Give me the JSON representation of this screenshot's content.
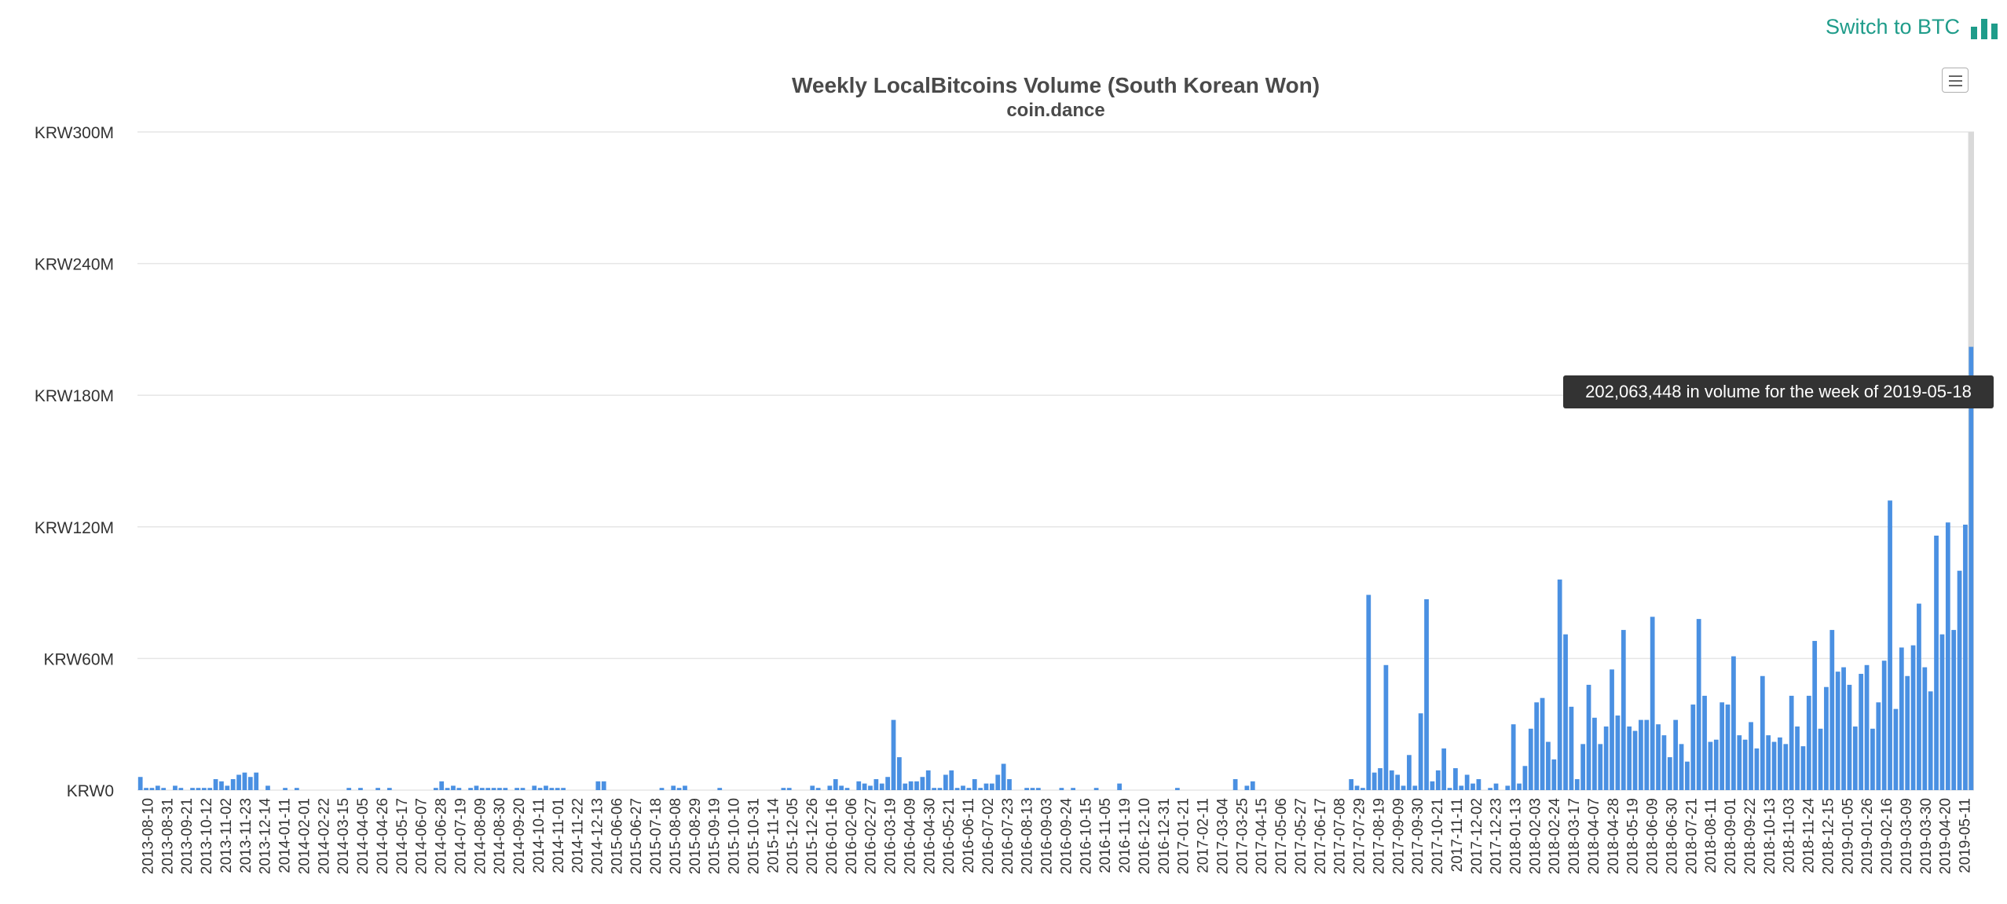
{
  "switch_button": {
    "label": "Switch to BTC",
    "icon": "bar-chart-icon",
    "color": "#1f9c8a"
  },
  "menu_button": {
    "icon": "hamburger-menu-icon"
  },
  "tooltip": {
    "text": "202,063,448 in volume for the week of 2019-05-18"
  },
  "colors": {
    "bar": "#4a90e2",
    "grid": "#e6e6e6",
    "title": "#4a4a4a",
    "axis_text": "#333333",
    "highlight": "#d9d9d9"
  },
  "chart_data": {
    "type": "bar",
    "title": "Weekly LocalBitcoins Volume (South Korean Won)",
    "subtitle": "coin.dance",
    "ylim": [
      0,
      300000000
    ],
    "y_ticks": [
      0,
      60000000,
      120000000,
      180000000,
      240000000,
      300000000
    ],
    "y_tick_labels": [
      "KRW0",
      "KRW60M",
      "KRW120M",
      "KRW180M",
      "KRW240M",
      "KRW300M"
    ],
    "grid": true,
    "legend": "none",
    "x_tick_labels": [
      "2013-08-10",
      "2013-08-31",
      "2013-09-21",
      "2013-10-12",
      "2013-11-02",
      "2013-11-23",
      "2013-12-14",
      "2014-01-11",
      "2014-02-01",
      "2014-02-22",
      "2014-03-15",
      "2014-04-05",
      "2014-04-26",
      "2014-05-17",
      "2014-06-07",
      "2014-06-28",
      "2014-07-19",
      "2014-08-09",
      "2014-08-30",
      "2014-09-20",
      "2014-10-11",
      "2014-11-01",
      "2014-11-22",
      "2014-12-13",
      "2015-06-06",
      "2015-06-27",
      "2015-07-18",
      "2015-08-08",
      "2015-08-29",
      "2015-09-19",
      "2015-10-10",
      "2015-10-31",
      "2015-11-14",
      "2015-12-05",
      "2015-12-26",
      "2016-01-16",
      "2016-02-06",
      "2016-02-27",
      "2016-03-19",
      "2016-04-09",
      "2016-04-30",
      "2016-05-21",
      "2016-06-11",
      "2016-07-02",
      "2016-07-23",
      "2016-08-13",
      "2016-09-03",
      "2016-09-24",
      "2016-10-15",
      "2016-11-05",
      "2016-11-19",
      "2016-12-10",
      "2016-12-31",
      "2017-01-21",
      "2017-02-11",
      "2017-03-04",
      "2017-03-25",
      "2017-04-15",
      "2017-05-06",
      "2017-05-27",
      "2017-06-17",
      "2017-07-08",
      "2017-07-29",
      "2017-08-19",
      "2017-09-09",
      "2017-09-30",
      "2017-10-21",
      "2017-11-11",
      "2017-12-02",
      "2017-12-23",
      "2018-01-13",
      "2018-02-03",
      "2018-02-24",
      "2018-03-17",
      "2018-04-07",
      "2018-04-28",
      "2018-05-19",
      "2018-06-09",
      "2018-06-30",
      "2018-07-21",
      "2018-08-11",
      "2018-09-01",
      "2018-09-22",
      "2018-10-13",
      "2018-11-03",
      "2018-11-24",
      "2018-12-15",
      "2019-01-05",
      "2019-01-26",
      "2019-02-16",
      "2019-03-09",
      "2019-03-30",
      "2019-04-20",
      "2019-05-11"
    ],
    "values": [
      6,
      1,
      1,
      2,
      1,
      0,
      2,
      1,
      0,
      1,
      1,
      1,
      1,
      5,
      4,
      2,
      5,
      7,
      8,
      6,
      8,
      0,
      2,
      0,
      0,
      1,
      0,
      1,
      0,
      0,
      0,
      0,
      0,
      0,
      0,
      0,
      1,
      0,
      1,
      0,
      0,
      1,
      0,
      1,
      0,
      0,
      0,
      0,
      0,
      0,
      0,
      1,
      4,
      1,
      2,
      1,
      0,
      1,
      2,
      1,
      1,
      1,
      1,
      1,
      0,
      1,
      1,
      0,
      2,
      1,
      2,
      1,
      1,
      1,
      0,
      0,
      0,
      0,
      0,
      4,
      4,
      0,
      0,
      0,
      0,
      0,
      0,
      0,
      0,
      0,
      1,
      0,
      2,
      1,
      2,
      0,
      0,
      0,
      0,
      0,
      1,
      0,
      0,
      0,
      0,
      0,
      0,
      0,
      0,
      0,
      0,
      1,
      1,
      0,
      0,
      0,
      2,
      1,
      0,
      2,
      5,
      2,
      1,
      0,
      4,
      3,
      2,
      5,
      3,
      6,
      32,
      15,
      3,
      4,
      4,
      6,
      9,
      1,
      1,
      7,
      9,
      1,
      2,
      1,
      5,
      1,
      3,
      3,
      7,
      12,
      5,
      0,
      0,
      1,
      1,
      1,
      0,
      0,
      0,
      1,
      0,
      1,
      0,
      0,
      0,
      1,
      0,
      0,
      0,
      3,
      0,
      0,
      0,
      0,
      0,
      0,
      0,
      0,
      0,
      1,
      0,
      0,
      0,
      0,
      0,
      0,
      0,
      0,
      0,
      5,
      0,
      2,
      4,
      0,
      0,
      0,
      0,
      0,
      0,
      0,
      0,
      0,
      0,
      0,
      0,
      0,
      0,
      0,
      0,
      5,
      2,
      1,
      89,
      8,
      10,
      57,
      9,
      7,
      2,
      16,
      2,
      35,
      87,
      4,
      9,
      19,
      1,
      10,
      2,
      7,
      3,
      5,
      0,
      1,
      3,
      0,
      2,
      30,
      3,
      11,
      28,
      40,
      42,
      22,
      14,
      96,
      71,
      38,
      5,
      21,
      48,
      33,
      21,
      29,
      55,
      34,
      73,
      29,
      27,
      32,
      32,
      79,
      30,
      25,
      15,
      32,
      21,
      13,
      39,
      78,
      43,
      22,
      23,
      40,
      39,
      61,
      25,
      23,
      31,
      19,
      52,
      25,
      22,
      24,
      21,
      43,
      29,
      20,
      43,
      68,
      28,
      47,
      73,
      54,
      56,
      48,
      29,
      53,
      57,
      28,
      40,
      59,
      132,
      37,
      65,
      52,
      66,
      85,
      56,
      45,
      116,
      71,
      122,
      73,
      100,
      121,
      202.063448
    ]
  }
}
